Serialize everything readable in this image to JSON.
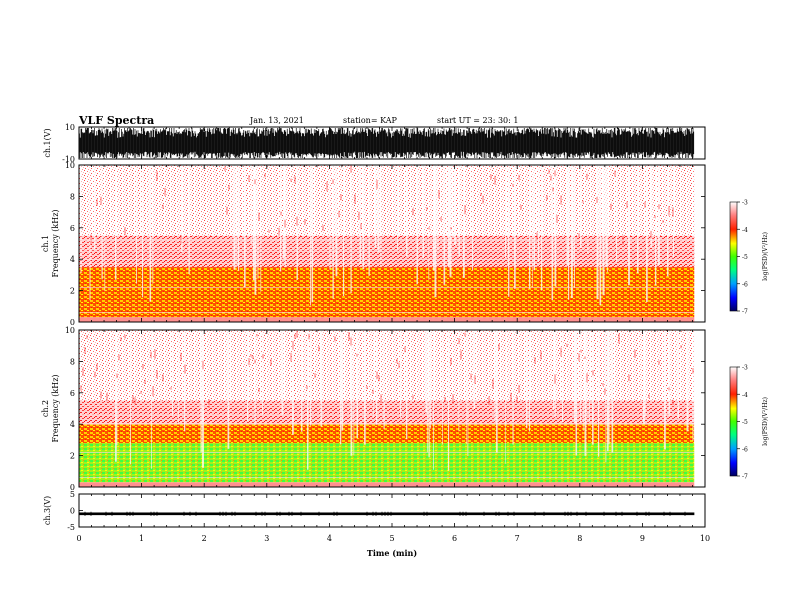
{
  "header": {
    "title": "VLF Spectra",
    "date": "Jan. 13, 2021",
    "station": "station= KAP",
    "start": "start  UT =  23: 30: 1"
  },
  "chart_data": [
    {
      "type": "line",
      "id": "ch1_waveform",
      "ylabel": "ch.1(V)",
      "ylim": [
        -10,
        10
      ],
      "yticks": [
        "10",
        "-10"
      ],
      "x_range_min": [
        0,
        9.83
      ],
      "amplitude_note": "dense saturated waveform spanning roughly -10 to 10 V",
      "color": "#000000"
    },
    {
      "type": "heatmap",
      "id": "ch1_spectrogram",
      "ylabel_top": "ch.1",
      "ylabel": "Frequency (kHz)",
      "ylim": [
        0,
        10
      ],
      "yticks": [
        "0",
        "2",
        "4",
        "6",
        "8",
        "10"
      ],
      "x_range_min": [
        0,
        9.83
      ],
      "bands": [
        {
          "f_from": 0.3,
          "f_to": 1.0,
          "level": "red/yellow, strong"
        },
        {
          "f_from": 1.0,
          "f_to": 3.5,
          "level": "yellow with some green, -4 to -4.5"
        },
        {
          "f_from": 3.5,
          "f_to": 5.5,
          "level": "red, about -3.5"
        },
        {
          "f_from": 5.5,
          "f_to": 10,
          "level": "pink/red speckle, about -3"
        }
      ],
      "colorbar": {
        "label": "log(PSD)(V²/Hz)",
        "ticks": [
          "-3",
          "-4",
          "-5",
          "-6",
          "-7"
        ],
        "range": [
          -7,
          -3
        ]
      }
    },
    {
      "type": "heatmap",
      "id": "ch2_spectrogram",
      "ylabel_top": "ch.2",
      "ylabel": "Frequency (kHz)",
      "ylim": [
        0,
        10
      ],
      "yticks": [
        "0",
        "2",
        "4",
        "6",
        "8",
        "10"
      ],
      "x_range_min": [
        0,
        9.83
      ],
      "bands": [
        {
          "f_from": 0.3,
          "f_to": 2.8,
          "level": "green/yellow, -4.5 to -5"
        },
        {
          "f_from": 2.8,
          "f_to": 4.0,
          "level": "yellow/orange, about -4"
        },
        {
          "f_from": 4.0,
          "f_to": 5.5,
          "level": "red, about -3.5"
        },
        {
          "f_from": 5.5,
          "f_to": 10,
          "level": "pink/red speckle, about -3"
        }
      ],
      "colorbar": {
        "label": "log(PSD)(V²/Hz)",
        "ticks": [
          "-3",
          "-4",
          "-5",
          "-6",
          "-7"
        ],
        "range": [
          -7,
          -3
        ]
      }
    },
    {
      "type": "line",
      "id": "ch3_waveform",
      "ylabel": "ch.3(V)",
      "ylim": [
        -5,
        5
      ],
      "yticks": [
        "5",
        "0",
        "-5"
      ],
      "x_range_min": [
        0,
        9.83
      ],
      "level_v": -1.0,
      "band_halfwidth_v": 0.4,
      "color": "#000000",
      "xlabel": "Time (min)",
      "xticks": [
        "0",
        "1",
        "2",
        "3",
        "4",
        "5",
        "6",
        "7",
        "8",
        "9",
        "10"
      ],
      "xlim": [
        0,
        10
      ]
    }
  ]
}
